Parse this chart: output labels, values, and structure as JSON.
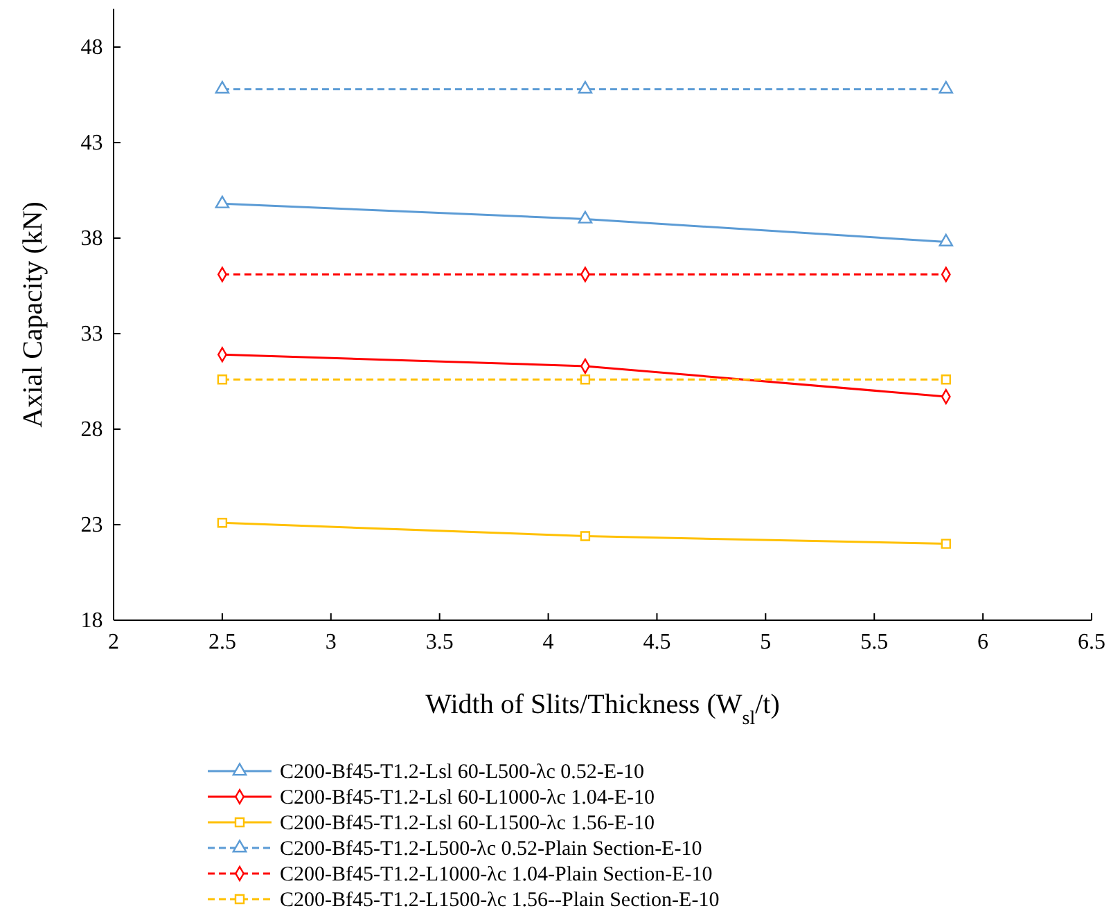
{
  "chart_data": {
    "type": "line",
    "xlabel": "Width of Slits/Thickness (W$_{sl}$/t)",
    "ylabel": "Axial Capacity (kN)",
    "xlim": [
      2,
      6.5
    ],
    "xticks": [
      2,
      2.5,
      3,
      3.5,
      4,
      4.5,
      5,
      5.5,
      6,
      6.5
    ],
    "ylim": [
      18,
      50
    ],
    "yticks": [
      18,
      23,
      28,
      33,
      38,
      43,
      48
    ],
    "grid": false,
    "legend": "bottom",
    "series": [
      {
        "name": "C200-Bf45-T1.2-Lsl 60-L500-λc 0.52-E-10",
        "color": "#5b9bd5",
        "x": [
          2.5,
          4.17,
          5.83
        ],
        "values": [
          39.8,
          39.0,
          37.8
        ],
        "marker": "triangle",
        "line_style": "solid"
      },
      {
        "name": "C200-Bf45-T1.2-Lsl 60-L1000-λc 1.04-E-10",
        "color": "#ff0000",
        "x": [
          2.5,
          4.17,
          5.83
        ],
        "values": [
          31.9,
          31.3,
          29.7
        ],
        "marker": "diamond",
        "line_style": "solid"
      },
      {
        "name": "C200-Bf45-T1.2-Lsl 60-L1500-λc 1.56-E-10",
        "color": "#ffc000",
        "x": [
          2.5,
          4.17,
          5.83
        ],
        "values": [
          23.1,
          22.4,
          22.0
        ],
        "marker": "square",
        "line_style": "solid"
      },
      {
        "name": "C200-Bf45-T1.2-L500-λc 0.52-Plain Section-E-10",
        "color": "#5b9bd5",
        "x": [
          2.5,
          4.17,
          5.83
        ],
        "values": [
          45.8,
          45.8,
          45.8
        ],
        "marker": "triangle",
        "line_style": "dashed"
      },
      {
        "name": "C200-Bf45-T1.2-L1000-λc 1.04-Plain Section-E-10",
        "color": "#ff0000",
        "x": [
          2.5,
          4.17,
          5.83
        ],
        "values": [
          36.1,
          36.1,
          36.1
        ],
        "marker": "diamond",
        "line_style": "dashed"
      },
      {
        "name": "C200-Bf45-T1.2-L1500-λc 1.56--Plain Section-E-10",
        "color": "#ffc000",
        "x": [
          2.5,
          4.17,
          5.83
        ],
        "values": [
          30.6,
          30.6,
          30.6
        ],
        "marker": "square",
        "line_style": "dashed"
      }
    ]
  }
}
